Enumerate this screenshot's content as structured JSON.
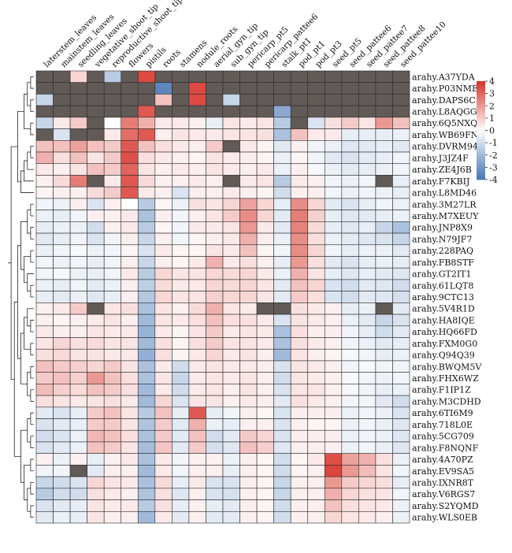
{
  "chart_data": {
    "type": "heatmap",
    "columns": [
      "laterstem_leaves",
      "mainstem_leaves",
      "seedling_leaves",
      "vegetative_shoot_tip",
      "reproductive_shoot_tip",
      "flowers",
      "pistils",
      "roots",
      "stamens",
      "nodule_roots",
      "aerial_gyn_tip",
      "sub_gyn_tip",
      "pericarp_pt5",
      "pericarp_pattee6",
      "stalk_pt1",
      "pod_pt1",
      "pod_pt3",
      "seed_pt5",
      "seed_pattee6",
      "seed_pattee7",
      "seed_pattee8",
      "seed_pattee10"
    ],
    "rows": [
      "arahy.A37YDA",
      "arahy.P03NME",
      "arahy.DAPS6C",
      "arahy.L8AQGG",
      "arahy.6Q5NXQ",
      "arahy.WB69FN",
      "arahy.DVRM94",
      "arahy.J3JZ4F",
      "arahy.ZE4J6B",
      "arahy.F7KBIJ",
      "arahy.L8MD46",
      "arahy.3M27LR",
      "arahy.M7XEUY",
      "arahy.JNP8X9",
      "arahy.N79JF7",
      "arahy.228PAQ",
      "arahy.FB8STF",
      "arahy.GT2IT1",
      "arahy.61LQT8",
      "arahy.9CTC13",
      "arahy.5V4R1D",
      "arahy.HA8IQE",
      "arahy.HQ66FD",
      "arahy.FXM0G0",
      "arahy.Q94Q39",
      "arahy.BWQM5V",
      "arahy.FHX6WZ",
      "arahy.F1IP1Z",
      "arahy.M3CDHD",
      "arahy.6TI6M9",
      "arahy.718L0E",
      "arahy.5CG709",
      "arahy.F8NQNF",
      "arahy.4A70PZ",
      "arahy.EV9SA5",
      "arahy.IXNR8T",
      "arahy.V6RGS7",
      "arahy.S2YQMD",
      "arahy.WLS0EB"
    ],
    "values": [
      [
        null,
        null,
        0.8,
        null,
        -1.5,
        null,
        3.5,
        null,
        null,
        null,
        null,
        null,
        null,
        null,
        null,
        null,
        null,
        null,
        null,
        null,
        null,
        null
      ],
      [
        null,
        null,
        null,
        null,
        null,
        null,
        null,
        -3.5,
        null,
        3.5,
        null,
        null,
        null,
        null,
        null,
        null,
        null,
        null,
        null,
        null,
        null,
        null
      ],
      [
        -1.2,
        null,
        null,
        null,
        null,
        null,
        null,
        1.2,
        null,
        3.5,
        null,
        -1.2,
        null,
        null,
        null,
        null,
        null,
        null,
        null,
        null,
        null,
        null
      ],
      [
        null,
        null,
        null,
        null,
        null,
        null,
        3.2,
        null,
        null,
        null,
        null,
        null,
        null,
        null,
        -2.5,
        null,
        null,
        null,
        null,
        null,
        null,
        null
      ],
      [
        -1.2,
        0.4,
        1.0,
        null,
        0,
        2.5,
        1.5,
        0.4,
        0.4,
        0.3,
        -0.5,
        0.5,
        0.4,
        0.5,
        -1.5,
        null,
        -0.8,
        0.6,
        1.0,
        0.5,
        2.0,
        1.2
      ],
      [
        null,
        -0.8,
        null,
        null,
        0.4,
        2.8,
        3.2,
        0.3,
        0.5,
        0.4,
        0.4,
        0.5,
        0.5,
        0.6,
        -1.8,
        1.2,
        0.4,
        0.4,
        -0.5,
        -0.5,
        -0.5,
        -0.4
      ],
      [
        1.2,
        1.2,
        1.8,
        1.2,
        1.0,
        3.2,
        1.2,
        0.6,
        0.4,
        0.3,
        1.0,
        null,
        0.4,
        0.2,
        -0.6,
        0.3,
        -0.3,
        -0.4,
        -0.7,
        -0.6,
        -0.5,
        -0.6
      ],
      [
        1.5,
        0.6,
        1.2,
        0.5,
        1.0,
        3.4,
        0.6,
        0.4,
        0.3,
        0.2,
        0.5,
        0.4,
        0.3,
        0.2,
        -0.4,
        0.2,
        -0.3,
        -0.6,
        -0.8,
        -0.6,
        -0.5,
        -0.3
      ],
      [
        0.4,
        0.3,
        0.5,
        1.2,
        1.0,
        3.0,
        0.5,
        0.3,
        0.4,
        0.3,
        0.5,
        0.4,
        0.3,
        0.4,
        -0.4,
        0.3,
        -0.2,
        -0.4,
        -0.6,
        -0.5,
        -0.4,
        -0.3
      ],
      [
        0.3,
        0.7,
        2.5,
        null,
        0.4,
        3.2,
        0.7,
        0.3,
        0.3,
        0.4,
        0.3,
        null,
        0.4,
        0.5,
        -1.5,
        0.4,
        0.3,
        -0.3,
        -0.4,
        -0.3,
        null,
        -0.5
      ],
      [
        0.2,
        0.3,
        0.3,
        0.7,
        1.0,
        3.2,
        0.4,
        0.3,
        -0.8,
        0.3,
        0.3,
        0.4,
        0.3,
        0.2,
        -1.0,
        0.3,
        0.3,
        -0.3,
        -0.4,
        -0.3,
        -0.4,
        -0.5
      ],
      [
        -0.3,
        -0.4,
        0.3,
        -0.8,
        0.3,
        0,
        -1.5,
        0.2,
        -0.4,
        0.6,
        0.5,
        0.8,
        1.8,
        0.8,
        -0.5,
        2.2,
        0.8,
        -0.6,
        -0.8,
        -0.5,
        -0.3,
        -0.4
      ],
      [
        -0.4,
        -0.5,
        -0.3,
        0.3,
        0.3,
        0.4,
        -1.8,
        0.3,
        -0.3,
        0.3,
        0.5,
        1.0,
        2.2,
        0.8,
        -0.6,
        2.5,
        0.9,
        -0.5,
        -0.7,
        -0.6,
        -0.5,
        -0.4
      ],
      [
        -0.5,
        -0.4,
        -0.4,
        -1.0,
        0.3,
        0.4,
        -1.5,
        0.2,
        -0.3,
        0.4,
        0.4,
        0.5,
        2.0,
        0.4,
        -0.6,
        2.4,
        0.7,
        -0.5,
        -0.7,
        -0.5,
        -1.2,
        -1.8
      ],
      [
        -0.6,
        -0.5,
        -0.3,
        -0.8,
        -0.3,
        0.3,
        -1.2,
        0.3,
        -0.3,
        0.2,
        0.3,
        0.4,
        1.5,
        0.3,
        -0.4,
        2.2,
        0.6,
        -0.4,
        -0.6,
        -0.7,
        -0.8,
        -1.2
      ],
      [
        -0.4,
        -0.3,
        -0.2,
        -0.4,
        -0.3,
        0.2,
        -0.8,
        0.4,
        0.2,
        0.2,
        0.5,
        0.4,
        1.2,
        0.2,
        -0.3,
        2.2,
        0.8,
        -0.3,
        -0.5,
        -0.4,
        -0.4,
        -0.6
      ],
      [
        -0.3,
        -0.4,
        -0.3,
        -0.5,
        -0.3,
        0.3,
        -1.2,
        0.3,
        0.2,
        0.4,
        1.5,
        0.4,
        0.6,
        0.3,
        -0.5,
        2.0,
        0.6,
        -0.6,
        -0.8,
        -0.5,
        -0.4,
        -0.5
      ],
      [
        -0.3,
        -0.2,
        -0.4,
        -0.5,
        -0.3,
        0.4,
        -1.5,
        0.8,
        0.5,
        0.5,
        0.8,
        0.7,
        0.8,
        0.4,
        -0.4,
        1.5,
        0.5,
        -0.5,
        -0.7,
        -0.5,
        -0.6,
        -0.7
      ],
      [
        -0.4,
        -0.5,
        -0.3,
        -0.6,
        -0.4,
        0.3,
        -1.4,
        0.7,
        0.4,
        0.4,
        0.8,
        0.7,
        0.8,
        0.5,
        -0.6,
        1.2,
        0.8,
        -0.8,
        -1.0,
        -0.6,
        -0.7,
        -1.0
      ],
      [
        -0.5,
        -0.6,
        -0.4,
        -0.7,
        -0.5,
        0.3,
        -1.6,
        0.8,
        0.5,
        0.5,
        0.9,
        0.8,
        0.8,
        0.5,
        -0.6,
        1.0,
        0.6,
        -0.8,
        -1.0,
        -0.6,
        -0.7,
        -0.9
      ],
      [
        0.3,
        0.4,
        1.0,
        null,
        0.5,
        0.6,
        -1.8,
        0.5,
        0.3,
        0.7,
        1.5,
        0.5,
        0.4,
        null,
        null,
        0.6,
        0.4,
        0.3,
        -0.5,
        -0.4,
        null,
        -0.6
      ],
      [
        0.3,
        0.2,
        0.3,
        0.4,
        0.5,
        0.3,
        -2.0,
        0.5,
        0.4,
        0.6,
        1.2,
        0.6,
        0.6,
        0.4,
        -0.8,
        0.5,
        0.4,
        0.3,
        -0.4,
        -0.6,
        -1.2,
        -0.8
      ],
      [
        0.4,
        0.3,
        0.3,
        0.5,
        0.4,
        0.4,
        -2.2,
        0.4,
        0.2,
        0.5,
        1.0,
        0.4,
        0.5,
        0.4,
        -1.8,
        0.6,
        0.3,
        0.3,
        -0.3,
        -0.5,
        -1.0,
        -0.6
      ],
      [
        0.5,
        0.8,
        0.6,
        0.7,
        0.5,
        0.5,
        -2.0,
        0.6,
        0.2,
        0.6,
        1.0,
        0.5,
        0.5,
        0.4,
        -1.8,
        0.6,
        0.4,
        0.3,
        -0.3,
        -0.4,
        -0.6,
        -0.5
      ],
      [
        0.6,
        0.7,
        0.5,
        0.5,
        0.4,
        0.4,
        -2.3,
        0.6,
        0.2,
        0.4,
        0.8,
        0.4,
        0.5,
        0.3,
        -2.0,
        0.5,
        0.3,
        0.2,
        -0.2,
        -0.3,
        -0.5,
        -0.4
      ],
      [
        1.2,
        1.0,
        0.9,
        0.8,
        1.0,
        0.5,
        -1.8,
        0.4,
        -1.0,
        0.4,
        0.5,
        0.4,
        0.4,
        0.3,
        -0.8,
        0.5,
        0.4,
        0.3,
        -0.3,
        -0.2,
        -0.3,
        -0.3
      ],
      [
        1.0,
        1.2,
        0.9,
        2.0,
        1.2,
        0.6,
        -1.8,
        0.5,
        -1.2,
        0.4,
        0.5,
        0.4,
        0.5,
        0.3,
        -1.0,
        0.5,
        0.4,
        0.3,
        -0.2,
        -0.3,
        -0.4,
        -0.3
      ],
      [
        1.3,
        0.9,
        0.7,
        1.2,
        1.0,
        0.6,
        -2.0,
        0.4,
        -1.0,
        0.4,
        0.5,
        0.3,
        0.5,
        0.3,
        -0.8,
        0.5,
        0.5,
        0.3,
        -0.2,
        -0.3,
        -0.5,
        -0.4
      ],
      [
        0.6,
        0.5,
        0.4,
        0.5,
        0.6,
        0.4,
        -2.0,
        0.8,
        -0.8,
        0.5,
        0.5,
        0.3,
        0.4,
        0.3,
        -0.6,
        0.6,
        0.4,
        0.3,
        -0.3,
        -0.3,
        -0.6,
        -1.0
      ],
      [
        -0.6,
        -0.8,
        -0.5,
        1.0,
        1.2,
        0.5,
        -1.5,
        1.2,
        -0.5,
        3.2,
        -0.5,
        -0.3,
        0.3,
        0.2,
        -0.8,
        0.3,
        0.3,
        0.3,
        -0.4,
        -0.3,
        -0.4,
        -0.8
      ],
      [
        -0.8,
        -0.6,
        -0.5,
        1.0,
        1.0,
        0.5,
        -1.7,
        1.0,
        -0.6,
        1.5,
        -0.4,
        -0.5,
        0.3,
        0.3,
        -0.8,
        0.3,
        0.2,
        0.2,
        -0.4,
        -0.3,
        -0.4,
        -0.7
      ],
      [
        -1.0,
        -0.8,
        -0.4,
        1.4,
        1.2,
        0.6,
        -1.8,
        1.0,
        -0.6,
        1.2,
        -1.0,
        -0.6,
        1.0,
        0.8,
        -0.8,
        0.3,
        0.3,
        0.3,
        -0.4,
        -0.3,
        -0.4,
        -0.7
      ],
      [
        -0.8,
        -0.6,
        -0.4,
        1.2,
        1.0,
        0.5,
        -1.9,
        1.1,
        -0.6,
        1.0,
        -0.9,
        -0.7,
        1.2,
        0.9,
        -0.7,
        0.3,
        0.3,
        0.3,
        -0.4,
        -0.3,
        -0.4,
        -0.7
      ],
      [
        0.3,
        -0.4,
        0.3,
        -0.5,
        0.3,
        0.4,
        -1.8,
        0.4,
        -0.3,
        0.3,
        0.3,
        -0.4,
        0.3,
        0.2,
        -1.0,
        0.2,
        0.4,
        3.4,
        1.8,
        1.5,
        0.6,
        -0.4
      ],
      [
        -0.3,
        -0.3,
        null,
        -0.6,
        0.3,
        0.3,
        -2.0,
        0.4,
        -0.3,
        0.3,
        0.3,
        -0.5,
        0.3,
        0.2,
        -1.0,
        0.2,
        0.3,
        3.6,
        2.0,
        1.3,
        0.5,
        -0.3
      ],
      [
        -1.2,
        -1.0,
        -0.8,
        0.8,
        0.5,
        0.4,
        -1.8,
        0.7,
        -0.5,
        0.4,
        -0.8,
        -0.8,
        0.3,
        0.2,
        -1.2,
        0.3,
        0.3,
        2.0,
        1.0,
        0.8,
        0.6,
        -0.5
      ],
      [
        -1.5,
        -1.0,
        -1.0,
        0.6,
        0.4,
        0.3,
        -1.7,
        0.6,
        -0.7,
        0.3,
        -0.8,
        -0.9,
        0.3,
        0.2,
        -1.2,
        0.3,
        0.3,
        1.5,
        0.8,
        0.6,
        0.5,
        -0.3
      ],
      [
        -0.8,
        -0.6,
        -0.5,
        0.5,
        0.4,
        0.4,
        -1.5,
        0.6,
        -0.5,
        0.3,
        -0.5,
        -0.6,
        0.3,
        0.2,
        -1.0,
        0.3,
        0.3,
        1.2,
        0.6,
        0.5,
        0.4,
        -0.4
      ],
      [
        -0.6,
        -0.4,
        -0.5,
        0.5,
        0.3,
        0.3,
        -2.0,
        0.4,
        -0.6,
        0.3,
        -0.6,
        -0.6,
        0.3,
        0.2,
        -1.0,
        0.3,
        0.3,
        0.8,
        0.5,
        0.4,
        0.3,
        -0.4
      ]
    ],
    "scale": {
      "min": -4,
      "max": 4,
      "low_color": "#4575b4",
      "mid_color": "#ffffff",
      "high_color": "#d73027",
      "na_color": "#615a57"
    },
    "legend": {
      "ticks": [
        "4",
        "3",
        "2",
        "1",
        "0",
        "-1",
        "-2",
        "-3",
        "-4"
      ],
      "placement": "right"
    },
    "row_dendrogram": true
  }
}
